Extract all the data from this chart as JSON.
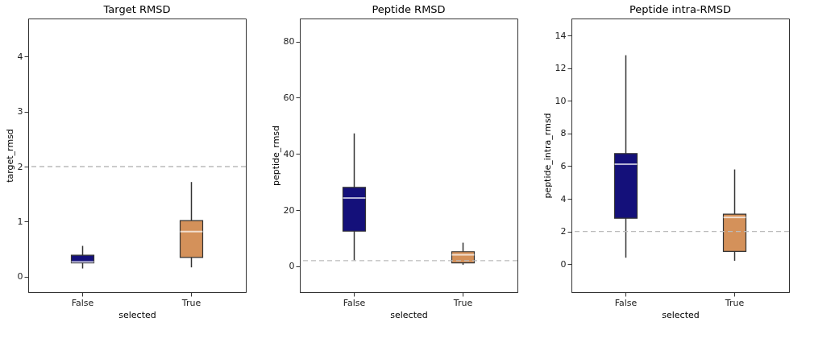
{
  "chart_data": [
    {
      "type": "box",
      "title": "Target RMSD",
      "xlabel": "selected",
      "ylabel": "target_rmsd",
      "categories": [
        "False",
        "True"
      ],
      "colors": [
        "#14107a",
        "#d4915a"
      ],
      "boxes": [
        {
          "low": 0.15,
          "q1": 0.25,
          "median": 0.27,
          "q3": 0.39,
          "high": 0.56
        },
        {
          "low": 0.17,
          "q1": 0.35,
          "median": 0.82,
          "q3": 1.02,
          "high": 1.72
        }
      ],
      "ylim": [
        -0.28,
        4.69
      ],
      "yticks": [
        0,
        1,
        2,
        3,
        4
      ],
      "grid": false,
      "ref_lines": [
        {
          "axis": "y",
          "value": 2,
          "color": "#bbbbbb",
          "line_style": "dashed"
        }
      ]
    },
    {
      "type": "box",
      "title": "Peptide RMSD",
      "xlabel": "selected",
      "ylabel": "peptide_rmsd",
      "categories": [
        "False",
        "True"
      ],
      "colors": [
        "#14107a",
        "#d4915a"
      ],
      "boxes": [
        {
          "low": 2.1,
          "q1": 12.5,
          "median": 24.3,
          "q3": 28.1,
          "high": 47.3
        },
        {
          "low": 0.5,
          "q1": 1.2,
          "median": 4.1,
          "q3": 5.2,
          "high": 8.4
        }
      ],
      "ylim": [
        -9.2,
        88.2
      ],
      "yticks": [
        0,
        20,
        40,
        60,
        80
      ],
      "grid": false,
      "ref_lines": [
        {
          "axis": "y",
          "value": 2,
          "color": "#bbbbbb",
          "line_style": "dashed"
        }
      ]
    },
    {
      "type": "box",
      "title": "Peptide intra-RMSD",
      "xlabel": "selected",
      "ylabel": "peptide_intra_rmsd",
      "categories": [
        "False",
        "True"
      ],
      "colors": [
        "#14107a",
        "#d4915a"
      ],
      "boxes": [
        {
          "low": 0.39,
          "q1": 2.81,
          "median": 6.12,
          "q3": 6.77,
          "high": 12.8
        },
        {
          "low": 0.2,
          "q1": 0.78,
          "median": 2.86,
          "q3": 3.06,
          "high": 5.8
        }
      ],
      "ylim": [
        -1.72,
        15.05
      ],
      "yticks": [
        0,
        2,
        4,
        6,
        8,
        10,
        12,
        14
      ],
      "grid": false,
      "ref_lines": [
        {
          "axis": "y",
          "value": 2,
          "color": "#bbbbbb",
          "line_style": "dashed"
        }
      ]
    }
  ]
}
